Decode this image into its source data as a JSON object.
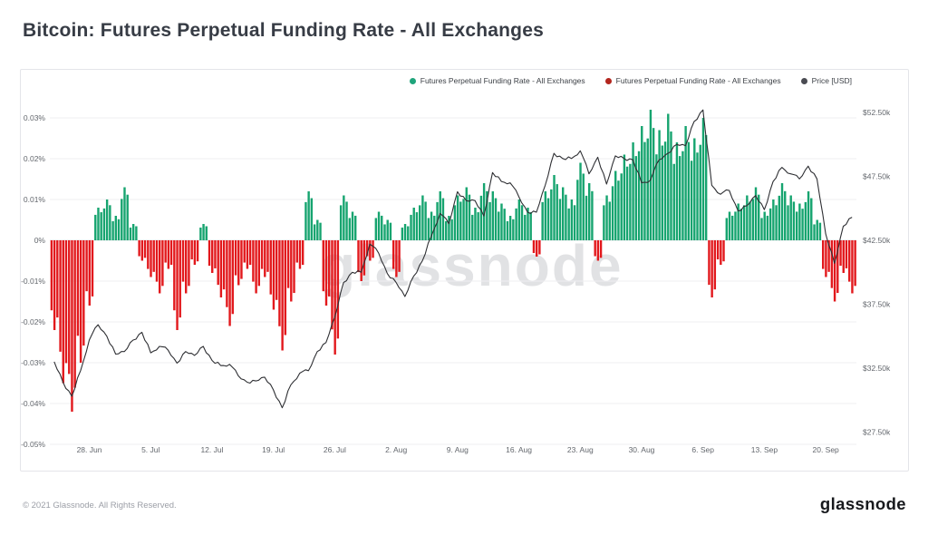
{
  "page": {
    "title": "Bitcoin: Futures Perpetual Funding Rate - All Exchanges",
    "watermark": "glassnode",
    "footer": {
      "copyright": "© 2021 Glassnode. All Rights Reserved.",
      "brand": "glassnode"
    }
  },
  "legend": [
    {
      "label": "Futures Perpetual Funding Rate - All Exchanges",
      "color": "#1fa47b"
    },
    {
      "label": "Futures Perpetual Funding Rate - All Exchanges",
      "color": "#b3261e"
    },
    {
      "label": "Price [USD]",
      "color": "#4a4b52"
    }
  ],
  "chart_data": {
    "type": "bar+line",
    "title": "Bitcoin: Futures Perpetual Funding Rate - All Exchanges",
    "grid": true,
    "legend_position": "top-right",
    "x_start_date": "2021-06-24",
    "x_ticks": [
      {
        "label": "28. Jun",
        "day": 4
      },
      {
        "label": "5. Jul",
        "day": 11
      },
      {
        "label": "12. Jul",
        "day": 18
      },
      {
        "label": "19. Jul",
        "day": 25
      },
      {
        "label": "26. Jul",
        "day": 32
      },
      {
        "label": "2. Aug",
        "day": 39
      },
      {
        "label": "9. Aug",
        "day": 46
      },
      {
        "label": "16. Aug",
        "day": 53
      },
      {
        "label": "23. Aug",
        "day": 60
      },
      {
        "label": "30. Aug",
        "day": 67
      },
      {
        "label": "6. Sep",
        "day": 74
      },
      {
        "label": "13. Sep",
        "day": 81
      },
      {
        "label": "20. Sep",
        "day": 88
      }
    ],
    "y_left": {
      "name": "Futures Perpetual Funding Rate - All Exchanges",
      "unit": "%",
      "range": [
        -0.05,
        0.035
      ],
      "ticks": [
        {
          "label": "0.03%",
          "value": 0.03
        },
        {
          "label": "0.02%",
          "value": 0.02
        },
        {
          "label": "0.01%",
          "value": 0.01
        },
        {
          "label": "0%",
          "value": 0
        },
        {
          "label": "-0.01%",
          "value": -0.01
        },
        {
          "label": "-0.02%",
          "value": -0.02
        },
        {
          "label": "-0.03%",
          "value": -0.03
        },
        {
          "label": "-0.04%",
          "value": -0.04
        },
        {
          "label": "-0.05%",
          "value": -0.05
        }
      ]
    },
    "y_right": {
      "name": "Price [USD]",
      "unit": "USD thousands",
      "range": [
        26,
        54
      ],
      "ticks": [
        {
          "label": "$52.50k",
          "value": 52.5
        },
        {
          "label": "$47.50k",
          "value": 47.5
        },
        {
          "label": "$42.50k",
          "value": 42.5
        },
        {
          "label": "$37.50k",
          "value": 37.5
        },
        {
          "label": "$32.50k",
          "value": 32.5
        },
        {
          "label": "$27.50k",
          "value": 27.5
        }
      ]
    },
    "series": [
      {
        "name": "Futures Perpetual Funding Rate - All Exchanges",
        "type": "bar",
        "axis": "left",
        "color_positive": "#16a46f",
        "color_negative": "#e2181c",
        "values": [
          -0.022,
          -0.035,
          -0.042,
          -0.03,
          -0.016,
          0.008,
          0.01,
          0.006,
          0.013,
          0.004,
          -0.005,
          -0.009,
          -0.013,
          -0.007,
          -0.022,
          -0.013,
          -0.006,
          0.004,
          -0.008,
          -0.014,
          -0.021,
          -0.011,
          -0.007,
          -0.013,
          -0.009,
          -0.017,
          -0.027,
          -0.015,
          -0.007,
          0.012,
          0.005,
          -0.016,
          -0.028,
          0.011,
          0.007,
          -0.01,
          -0.005,
          0.007,
          0.005,
          -0.009,
          0.004,
          0.008,
          0.011,
          0.007,
          0.012,
          0.006,
          0.011,
          0.013,
          0.008,
          0.014,
          0.012,
          0.009,
          0.006,
          0.01,
          0.008,
          -0.004,
          0.012,
          0.016,
          0.013,
          0.01,
          0.019,
          0.014,
          -0.005,
          0.011,
          0.017,
          0.021,
          0.024,
          0.028,
          0.032,
          0.027,
          0.031,
          0.024,
          0.028,
          0.025,
          0.03,
          -0.014,
          -0.006,
          0.007,
          0.009,
          0.011,
          0.013,
          0.007,
          0.01,
          0.014,
          0.011,
          0.009,
          0.012,
          0.005,
          -0.009,
          -0.015,
          -0.008,
          -0.013
        ]
      },
      {
        "name": "Price [USD]",
        "type": "line",
        "axis": "right",
        "color": "#2e2f33",
        "values": [
          33.0,
          31.4,
          30.3,
          32.3,
          34.7,
          35.9,
          35.0,
          33.6,
          33.8,
          34.7,
          35.3,
          33.7,
          34.2,
          33.9,
          32.9,
          33.8,
          33.5,
          34.2,
          33.1,
          32.7,
          32.8,
          31.9,
          31.4,
          31.5,
          31.8,
          30.8,
          29.4,
          31.2,
          32.1,
          32.3,
          33.8,
          34.5,
          36.5,
          39.2,
          40.0,
          40.0,
          42.2,
          41.5,
          39.9,
          39.2,
          38.1,
          39.7,
          40.9,
          42.8,
          44.6,
          43.8,
          46.3,
          45.6,
          45.6,
          44.4,
          47.8,
          47.1,
          47.0,
          45.9,
          44.7,
          44.7,
          46.8,
          49.3,
          48.9,
          48.9,
          49.5,
          47.7,
          49.0,
          46.9,
          49.1,
          48.9,
          48.8,
          47.0,
          47.2,
          48.8,
          49.3,
          50.0,
          49.9,
          51.8,
          52.7,
          46.8,
          46.1,
          46.4,
          44.8,
          45.2,
          46.0,
          44.9,
          47.1,
          48.2,
          47.7,
          47.3,
          48.3,
          47.3,
          43.0,
          40.7,
          43.6,
          44.3
        ]
      }
    ]
  }
}
